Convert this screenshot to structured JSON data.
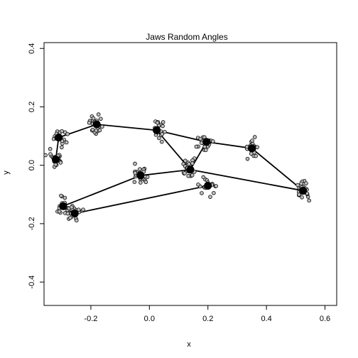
{
  "chart_data": {
    "type": "scatter",
    "title": "Jaws Random Angles",
    "xlabel": "x",
    "ylabel": "y",
    "xlim": [
      -0.36,
      0.64
    ],
    "ylim": [
      -0.48,
      0.42
    ],
    "xticks": [
      -0.2,
      0.0,
      0.2,
      0.4,
      0.6
    ],
    "xtick_labels": [
      "-0.2",
      "0.0",
      "0.2",
      "0.4",
      "0.6"
    ],
    "yticks": [
      -0.4,
      -0.2,
      0.0,
      0.2,
      0.4
    ],
    "ytick_labels": [
      "-0.4",
      "-0.2",
      "0.0",
      "0.2",
      "0.4"
    ],
    "grid": false,
    "landmarks": [
      {
        "x": -0.32,
        "y": 0.02
      },
      {
        "x": -0.31,
        "y": 0.095
      },
      {
        "x": -0.18,
        "y": 0.14
      },
      {
        "x": 0.025,
        "y": 0.12
      },
      {
        "x": 0.195,
        "y": 0.08
      },
      {
        "x": 0.35,
        "y": 0.058
      },
      {
        "x": 0.525,
        "y": -0.087
      },
      {
        "x": 0.14,
        "y": -0.015
      },
      {
        "x": 0.2,
        "y": -0.07
      },
      {
        "x": -0.03,
        "y": -0.035
      },
      {
        "x": -0.295,
        "y": -0.14
      },
      {
        "x": -0.255,
        "y": -0.165
      }
    ],
    "segments": [
      [
        0,
        1
      ],
      [
        1,
        2
      ],
      [
        2,
        3
      ],
      [
        3,
        4
      ],
      [
        4,
        5
      ],
      [
        5,
        6
      ],
      [
        3,
        7
      ],
      [
        4,
        7
      ],
      [
        7,
        9
      ],
      [
        9,
        10
      ],
      [
        7,
        6
      ],
      [
        8,
        11
      ]
    ],
    "scatter_spread": {
      "x": 0.022,
      "y": 0.026
    },
    "scatter_points_per_landmark": 22
  }
}
